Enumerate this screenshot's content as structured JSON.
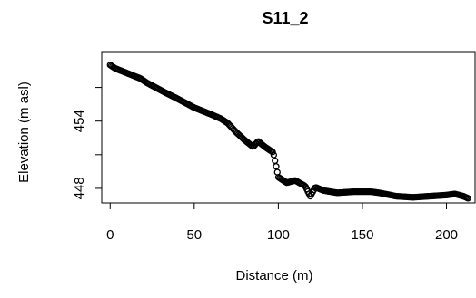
{
  "chart_data": {
    "type": "scatter",
    "title": "S11_2",
    "xlabel": "Distance (m)",
    "ylabel": "Elevation (m asl)",
    "xlim": [
      -5,
      217
    ],
    "ylim": [
      446.7,
      460.2
    ],
    "x_ticks": [
      0,
      50,
      100,
      150,
      200
    ],
    "y_ticks": [
      448,
      451,
      454,
      457
    ],
    "y_tick_labels": [
      "448",
      "",
      "454",
      ""
    ],
    "grid": false,
    "marker": "open-circle",
    "color": "#000000",
    "x_anchor": [
      0,
      3,
      8,
      13,
      18,
      22,
      27,
      32,
      40,
      50,
      60,
      66,
      70,
      75,
      80,
      85,
      88,
      92,
      97,
      100,
      105,
      110,
      116,
      119,
      122,
      127,
      135,
      145,
      155,
      160,
      170,
      180,
      190,
      200,
      205,
      210,
      213
    ],
    "y_anchor": [
      459.0,
      458.7,
      458.4,
      458.1,
      457.8,
      457.4,
      457.0,
      456.6,
      456.0,
      455.2,
      454.6,
      454.2,
      453.8,
      453.0,
      452.3,
      451.7,
      452.2,
      451.7,
      451.2,
      449.0,
      448.5,
      448.7,
      448.2,
      447.3,
      448.1,
      447.8,
      447.6,
      447.7,
      447.7,
      447.6,
      447.3,
      447.2,
      447.3,
      447.4,
      447.5,
      447.3,
      447.1
    ],
    "sample_step": 0.7
  }
}
